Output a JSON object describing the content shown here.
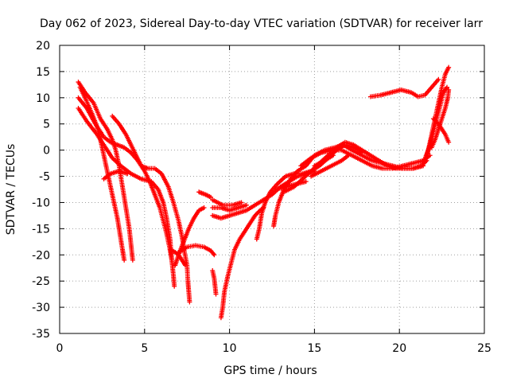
{
  "chart_data": {
    "type": "scatter",
    "title": "Day 062 of 2023, Sidereal Day-to-day VTEC variation (SDTVAR) for receiver larr",
    "xlabel": "GPS time / hours",
    "ylabel": "SDTVAR / TECUs",
    "xlim": [
      0,
      25
    ],
    "ylim": [
      -35,
      20
    ],
    "xticks": [
      0,
      5,
      10,
      15,
      20,
      25
    ],
    "yticks": [
      -35,
      -30,
      -25,
      -20,
      -15,
      -10,
      -5,
      0,
      5,
      10,
      15,
      20
    ],
    "grid": true,
    "legend": "none",
    "marker": "plus",
    "color": "#ff0000",
    "series": [
      {
        "values": [
          [
            1.1,
            13
          ],
          [
            1.5,
            11
          ],
          [
            2.0,
            9
          ],
          [
            2.4,
            6
          ],
          [
            2.8,
            4
          ],
          [
            3.1,
            2
          ],
          [
            3.3,
            0
          ],
          [
            3.5,
            -3
          ],
          [
            3.7,
            -7
          ],
          [
            3.9,
            -11
          ],
          [
            4.1,
            -15
          ],
          [
            4.2,
            -18
          ],
          [
            4.3,
            -21
          ]
        ]
      },
      {
        "values": [
          [
            1.1,
            10
          ],
          [
            1.6,
            8
          ],
          [
            2.1,
            5
          ],
          [
            2.6,
            2.5
          ],
          [
            3.0,
            1.5
          ],
          [
            3.4,
            1
          ],
          [
            3.8,
            0.5
          ],
          [
            4.2,
            -0.5
          ],
          [
            4.6,
            -2
          ],
          [
            5.0,
            -4
          ],
          [
            5.3,
            -6
          ],
          [
            5.6,
            -8.5
          ],
          [
            5.9,
            -11
          ],
          [
            6.1,
            -13.5
          ],
          [
            6.3,
            -16
          ],
          [
            6.5,
            -19
          ],
          [
            6.6,
            -21
          ]
        ]
      },
      {
        "values": [
          [
            1.2,
            12
          ],
          [
            1.5,
            10
          ],
          [
            1.9,
            7
          ],
          [
            2.2,
            4.5
          ],
          [
            2.4,
            2
          ],
          [
            2.6,
            -1
          ],
          [
            2.8,
            -4
          ],
          [
            3.0,
            -7
          ],
          [
            3.2,
            -10
          ],
          [
            3.4,
            -13
          ],
          [
            3.55,
            -16
          ],
          [
            3.7,
            -19
          ],
          [
            3.8,
            -21
          ]
        ]
      },
      {
        "values": [
          [
            1.1,
            8
          ],
          [
            1.6,
            5.5
          ],
          [
            2.2,
            3
          ],
          [
            2.7,
            0.5
          ],
          [
            3.1,
            -1.5
          ],
          [
            3.6,
            -3
          ],
          [
            4.2,
            -4.5
          ],
          [
            4.8,
            -5.5
          ],
          [
            5.4,
            -6
          ],
          [
            5.8,
            -7.5
          ],
          [
            6.1,
            -10
          ],
          [
            6.3,
            -13
          ],
          [
            6.5,
            -17
          ],
          [
            6.6,
            -21
          ],
          [
            6.7,
            -24
          ],
          [
            6.75,
            -26
          ]
        ]
      },
      {
        "values": [
          [
            3.1,
            6.5
          ],
          [
            3.5,
            5
          ],
          [
            3.9,
            3
          ],
          [
            4.2,
            1
          ],
          [
            4.5,
            -1
          ],
          [
            4.8,
            -3
          ],
          [
            5.2,
            -3.5
          ],
          [
            5.6,
            -3.5
          ],
          [
            6.0,
            -4.5
          ],
          [
            6.4,
            -7
          ],
          [
            6.7,
            -10
          ],
          [
            7.0,
            -13.5
          ],
          [
            7.2,
            -16.5
          ],
          [
            7.35,
            -19.5
          ],
          [
            7.5,
            -22
          ],
          [
            7.55,
            -25
          ],
          [
            7.6,
            -27
          ],
          [
            7.65,
            -29
          ]
        ]
      },
      {
        "values": [
          [
            2.6,
            -5.5
          ],
          [
            3.0,
            -4.5
          ],
          [
            3.5,
            -4
          ],
          [
            4.0,
            -4.5
          ]
        ]
      },
      {
        "values": [
          [
            6.5,
            -19
          ],
          [
            6.8,
            -19.5
          ],
          [
            7.0,
            -20
          ],
          [
            7.2,
            -21
          ],
          [
            7.4,
            -22
          ]
        ]
      },
      {
        "values": [
          [
            7.0,
            -19.5
          ],
          [
            7.5,
            -18.5
          ],
          [
            8.0,
            -18.2
          ],
          [
            8.5,
            -18.5
          ],
          [
            8.9,
            -19.2
          ],
          [
            9.1,
            -20
          ]
        ]
      },
      {
        "values": [
          [
            6.8,
            -22
          ],
          [
            7.0,
            -20
          ],
          [
            7.3,
            -17.5
          ],
          [
            7.6,
            -15
          ],
          [
            7.9,
            -13
          ],
          [
            8.2,
            -11.5
          ],
          [
            8.5,
            -11
          ]
        ]
      },
      {
        "values": [
          [
            8.2,
            -8
          ],
          [
            8.6,
            -8.5
          ],
          [
            8.9,
            -9
          ]
        ]
      },
      {
        "values": [
          [
            9.0,
            -23
          ],
          [
            9.1,
            -24.5
          ],
          [
            9.15,
            -26
          ],
          [
            9.2,
            -27.5
          ]
        ]
      },
      {
        "values": [
          [
            9.5,
            -32
          ],
          [
            9.6,
            -30
          ],
          [
            9.7,
            -27
          ],
          [
            9.9,
            -24
          ],
          [
            10.1,
            -21.5
          ],
          [
            10.3,
            -19
          ],
          [
            10.6,
            -17
          ],
          [
            10.9,
            -15.5
          ],
          [
            11.2,
            -14
          ],
          [
            11.5,
            -12.5
          ],
          [
            11.8,
            -11.5
          ],
          [
            12.0,
            -11
          ]
        ]
      },
      {
        "values": [
          [
            9.0,
            -12.5
          ],
          [
            9.5,
            -13
          ],
          [
            10.0,
            -12.5
          ],
          [
            10.5,
            -12
          ],
          [
            11.0,
            -11.5
          ],
          [
            11.5,
            -10.5
          ],
          [
            12.0,
            -9.5
          ],
          [
            12.5,
            -8.5
          ],
          [
            13.0,
            -7
          ],
          [
            13.5,
            -6
          ],
          [
            14.0,
            -5
          ],
          [
            14.5,
            -4.5
          ],
          [
            15.0,
            -4
          ]
        ]
      },
      {
        "values": [
          [
            9.0,
            -11
          ],
          [
            9.5,
            -11
          ],
          [
            10.0,
            -11.5
          ],
          [
            10.5,
            -11
          ],
          [
            11.0,
            -10.5
          ]
        ]
      },
      {
        "values": [
          [
            9.0,
            -9.5
          ],
          [
            9.6,
            -10.5
          ],
          [
            10.2,
            -10.5
          ],
          [
            10.7,
            -10
          ]
        ]
      },
      {
        "values": [
          [
            11.6,
            -17
          ],
          [
            11.75,
            -15
          ],
          [
            11.9,
            -12
          ],
          [
            12.1,
            -10
          ],
          [
            12.4,
            -8
          ],
          [
            12.8,
            -6.5
          ],
          [
            13.3,
            -5
          ],
          [
            13.8,
            -4.5
          ],
          [
            14.3,
            -4.5
          ],
          [
            14.8,
            -4
          ],
          [
            15.3,
            -3
          ],
          [
            15.8,
            -1.5
          ],
          [
            16.3,
            0
          ],
          [
            16.8,
            1
          ],
          [
            17.3,
            0.5
          ],
          [
            17.8,
            -0.5
          ]
        ]
      },
      {
        "values": [
          [
            12.6,
            -14.5
          ],
          [
            12.7,
            -12.5
          ],
          [
            12.9,
            -10
          ],
          [
            13.2,
            -7.5
          ],
          [
            13.6,
            -5.5
          ],
          [
            14.0,
            -4
          ],
          [
            14.5,
            -3
          ],
          [
            15.0,
            -1
          ],
          [
            15.6,
            0
          ],
          [
            16.2,
            0.5
          ],
          [
            16.7,
            1
          ],
          [
            17.2,
            0
          ],
          [
            17.8,
            -1
          ],
          [
            18.4,
            -2
          ],
          [
            19.0,
            -2.5
          ],
          [
            19.6,
            -3
          ],
          [
            20.2,
            -3.5
          ],
          [
            20.8,
            -3.5
          ],
          [
            21.4,
            -3
          ]
        ]
      },
      {
        "values": [
          [
            12.7,
            -7.5
          ],
          [
            13.3,
            -7
          ],
          [
            13.9,
            -6.5
          ],
          [
            14.5,
            -6
          ]
        ]
      },
      {
        "values": [
          [
            13.2,
            -8
          ],
          [
            13.8,
            -7
          ],
          [
            14.3,
            -5.5
          ],
          [
            14.8,
            -4
          ],
          [
            15.3,
            -2.5
          ],
          [
            15.8,
            -1
          ],
          [
            16.3,
            0.5
          ],
          [
            16.8,
            1.5
          ],
          [
            17.3,
            1
          ],
          [
            17.8,
            0
          ],
          [
            18.3,
            -1
          ],
          [
            18.8,
            -2
          ],
          [
            19.3,
            -3
          ],
          [
            19.8,
            -3.5
          ],
          [
            20.3,
            -3.5
          ],
          [
            20.8,
            -3.5
          ],
          [
            21.3,
            -3
          ],
          [
            21.6,
            -2
          ]
        ]
      },
      {
        "values": [
          [
            14.2,
            -3
          ],
          [
            14.8,
            -1.5
          ],
          [
            15.4,
            -0.5
          ],
          [
            16.0,
            0
          ],
          [
            16.6,
            0
          ],
          [
            17.2,
            -1
          ],
          [
            17.8,
            -2
          ],
          [
            18.4,
            -3
          ],
          [
            19.0,
            -3.5
          ],
          [
            19.6,
            -3.5
          ],
          [
            20.2,
            -3
          ],
          [
            20.8,
            -2.5
          ],
          [
            21.4,
            -2
          ],
          [
            21.8,
            -1
          ]
        ]
      },
      {
        "values": [
          [
            14.8,
            -5
          ],
          [
            15.4,
            -4
          ],
          [
            16.0,
            -3
          ],
          [
            16.6,
            -2
          ],
          [
            17.0,
            -1
          ]
        ]
      },
      {
        "values": [
          [
            15.0,
            -3
          ],
          [
            15.6,
            -2
          ],
          [
            16.1,
            -1
          ]
        ]
      },
      {
        "values": [
          [
            18.3,
            10.2
          ],
          [
            18.9,
            10.5
          ],
          [
            19.5,
            11
          ],
          [
            20.1,
            11.5
          ],
          [
            20.7,
            11
          ],
          [
            21.1,
            10.2
          ],
          [
            21.5,
            10.5
          ],
          [
            21.9,
            12
          ],
          [
            22.3,
            13.5
          ]
        ]
      },
      {
        "values": [
          [
            21.4,
            -2.5
          ],
          [
            21.7,
            0
          ],
          [
            21.9,
            3
          ],
          [
            22.1,
            6
          ],
          [
            22.3,
            9
          ],
          [
            22.5,
            12
          ],
          [
            22.7,
            14.5
          ],
          [
            22.9,
            15.8
          ]
        ]
      },
      {
        "values": [
          [
            21.6,
            -1
          ],
          [
            21.8,
            1
          ],
          [
            22.0,
            3.5
          ],
          [
            22.2,
            6
          ],
          [
            22.4,
            8.5
          ],
          [
            22.6,
            11
          ],
          [
            22.8,
            12
          ]
        ]
      },
      {
        "values": [
          [
            21.9,
            0.5
          ],
          [
            22.1,
            2
          ],
          [
            22.3,
            4
          ],
          [
            22.5,
            6
          ],
          [
            22.7,
            8
          ],
          [
            22.85,
            10
          ],
          [
            22.9,
            11.5
          ]
        ]
      },
      {
        "values": [
          [
            22.0,
            6
          ],
          [
            22.3,
            5
          ],
          [
            22.5,
            4
          ],
          [
            22.7,
            3
          ],
          [
            22.9,
            1.5
          ]
        ]
      }
    ]
  }
}
